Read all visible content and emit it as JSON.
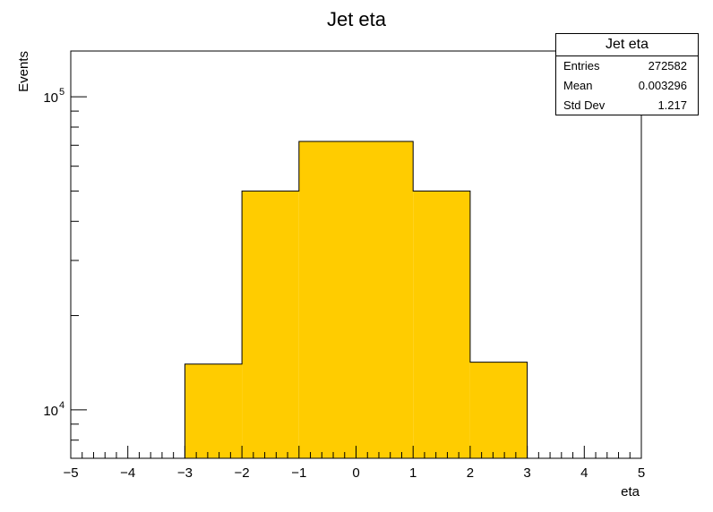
{
  "chart_data": {
    "type": "bar",
    "title": "Jet eta",
    "xlabel": "eta",
    "ylabel": "Events",
    "xlim": [
      -5,
      5
    ],
    "ylim": [
      7000,
      140000
    ],
    "yscale": "log",
    "bin_edges": [
      -3,
      -2,
      -1,
      1,
      2,
      3
    ],
    "values": [
      14000,
      50000,
      72000,
      50000,
      14200
    ],
    "fill_color": "#ffcc00",
    "edge_color": "#000000",
    "xticks": [
      -5,
      -4,
      -3,
      -2,
      -1,
      0,
      1,
      2,
      3,
      4,
      5
    ],
    "xtick_labels": [
      "−5",
      "−4",
      "−3",
      "−2",
      "−1",
      "0",
      "1",
      "2",
      "3",
      "4",
      "5"
    ],
    "ytick_labels": [
      {
        "value": 10000,
        "base": "10",
        "exp": "4"
      },
      {
        "value": 100000,
        "base": "10",
        "exp": "5"
      }
    ],
    "grid": false,
    "legend": "none"
  },
  "stats": {
    "title": "Jet eta",
    "rows": [
      {
        "label": "Entries",
        "value": "272582"
      },
      {
        "label": "Mean",
        "value": "0.003296"
      },
      {
        "label": "Std Dev",
        "value": "1.217"
      }
    ]
  }
}
